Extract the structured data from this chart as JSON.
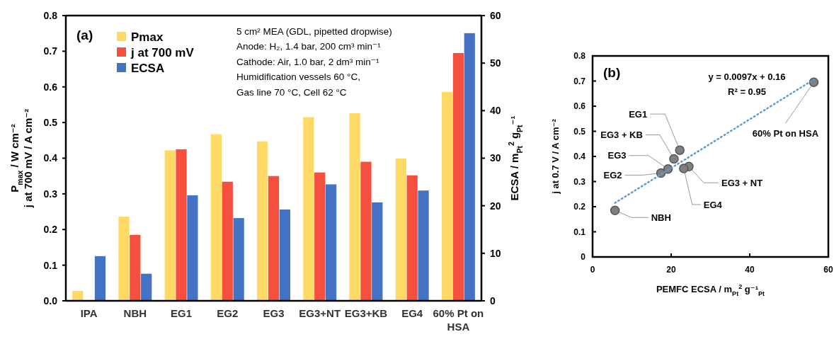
{
  "chart_data": [
    {
      "type": "bar",
      "title": "(a)",
      "ylabel": "P$_{max}$ / W cm⁻²\nj at 700 mV / A cm⁻²",
      "y2label": "ECSA / m$_{Pt}$$^{2}$ g$_{Pt}$⁻¹",
      "categories": [
        "IPA",
        "NBH",
        "EG1",
        "EG2",
        "EG3",
        "EG3+NT",
        "EG3+KB",
        "EG4",
        "60% Pt on HSA"
      ],
      "series": [
        {
          "name": "Pmax",
          "color": "#ffd966",
          "values": [
            0.028,
            0.236,
            0.422,
            0.467,
            0.447,
            0.515,
            0.526,
            0.399,
            0.586
          ]
        },
        {
          "name": "j at 700 mV",
          "color": "#f5503f",
          "values": [
            null,
            0.185,
            0.425,
            0.334,
            0.35,
            0.36,
            0.39,
            0.352,
            0.695
          ]
        },
        {
          "name": "ECSA",
          "color": "#4472c4",
          "axis": "y2",
          "values": [
            9.4,
            5.7,
            22.2,
            17.4,
            19.2,
            24.5,
            20.7,
            23.2,
            56.3
          ]
        }
      ],
      "ylim": [
        0,
        0.8
      ],
      "yticks": [
        {
          "value": 0,
          "label": "0.0"
        },
        0.1,
        0.2,
        0.3,
        0.4,
        0.5,
        0.6,
        0.7,
        0.8
      ],
      "y2lim": [
        0,
        60
      ],
      "y2ticks": [
        0,
        10,
        20,
        30,
        40,
        50,
        60
      ],
      "legend": "top left",
      "grid": false,
      "annotations": [
        "5 cm² MEA (GDL, pipetted dropwise)",
        "Anode: H₂, 1.4 bar, 200 cm³ min⁻¹",
        "Cathode: Air, 1.0 bar, 2 dm³ min⁻¹",
        "Humidification vessels 60 °C,",
        "Gas line 70 °C, Cell 62 °C"
      ]
    },
    {
      "type": "scatter",
      "title": "(b)",
      "xlabel": "PEMFC ECSA / m$_{Pt}$$^{2}$ g⁻¹$_{Pt}$",
      "ylabel": "j at 0.7 V / A cm⁻²",
      "series": [
        {
          "color": "#808080",
          "x": [
            5.7,
            22.2,
            17.4,
            19.2,
            24.5,
            20.7,
            23.2,
            56.3
          ],
          "values": [
            0.185,
            0.425,
            0.334,
            0.35,
            0.36,
            0.39,
            0.352,
            0.695
          ]
        },
        {
          "type": "line",
          "color": "#5b9bd5",
          "marker": "none",
          "line_style": "dotted",
          "x": [
            5.7,
            56.3
          ],
          "values": [
            0.215,
            0.706
          ]
        }
      ],
      "xlim": [
        0,
        60
      ],
      "xticks": [
        0,
        20,
        40,
        60
      ],
      "ylim": [
        0,
        0.8
      ],
      "yticks": [
        0,
        0.1,
        0.2,
        0.3,
        0.4,
        0.5,
        0.6,
        0.7,
        0.8
      ],
      "marker": "circle",
      "grid": false,
      "annotations": [
        "y = 0.0097x + 0.16",
        "R² = 0.95",
        {
          "text": "NBH",
          "x": 5.7,
          "y": 0.185
        },
        {
          "text": "EG1",
          "x": 22.2,
          "y": 0.425
        },
        {
          "text": "EG2",
          "x": 17.4,
          "y": 0.334
        },
        {
          "text": "EG3",
          "x": 19.2,
          "y": 0.35
        },
        {
          "text": "EG3 + NT",
          "x": 24.5,
          "y": 0.36
        },
        {
          "text": "EG3 + KB",
          "x": 20.7,
          "y": 0.39
        },
        {
          "text": "EG4",
          "x": 23.2,
          "y": 0.352
        },
        {
          "text": "60% Pt on HSA",
          "x": 56.3,
          "y": 0.695
        }
      ]
    }
  ]
}
